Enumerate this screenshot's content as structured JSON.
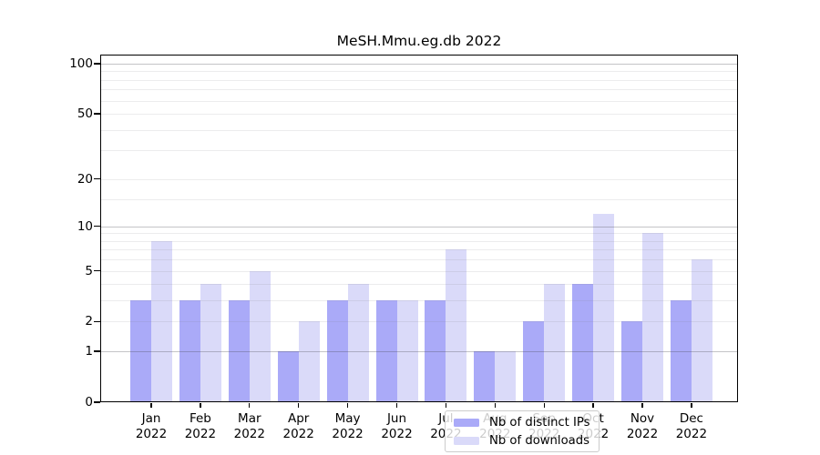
{
  "figure": {
    "title": "MeSH.Mmu.eg.db 2022"
  },
  "colors": {
    "ips_bar": "#aaaaf8",
    "downloads_bar": "#dadaf9",
    "axis_frame": "#000000",
    "decade_gridline_rgba": "rgba(70,70,80,0.32)",
    "light_gridline_rgba": "rgba(120,120,130,0.14)",
    "legend_border": "#cccccc"
  },
  "chart_data": {
    "type": "bar",
    "title": "MeSH.Mmu.eg.db 2022",
    "categories": [
      "Jan",
      "Feb",
      "Mar",
      "Apr",
      "May",
      "Jun",
      "Jul",
      "Aug",
      "Sep",
      "Oct",
      "Nov",
      "Dec"
    ],
    "year": "2022",
    "series": [
      {
        "name": "Nb of distinct IPs",
        "color_key": "ips_bar",
        "values": [
          3,
          3,
          3,
          1,
          3,
          3,
          3,
          1,
          2,
          4,
          2,
          3
        ]
      },
      {
        "name": "Nb of downloads",
        "color_key": "downloads_bar",
        "values": [
          8,
          4,
          5,
          2,
          4,
          3,
          7,
          1,
          4,
          12,
          9,
          6
        ]
      }
    ],
    "xlabel": "",
    "ylabel": "",
    "y_axis": {
      "scale": "log1p",
      "labeled_ticks": [
        0,
        1,
        2,
        5,
        10,
        20,
        50,
        100
      ],
      "decade_gridlines": [
        1,
        10,
        100
      ],
      "light_gridlines": [
        2,
        3,
        4,
        5,
        6,
        7,
        8,
        9,
        15,
        20,
        30,
        40,
        50,
        60,
        70,
        80,
        90
      ],
      "ylim": [
        0,
        114
      ]
    },
    "grid": true,
    "legend_position": "lower center"
  }
}
